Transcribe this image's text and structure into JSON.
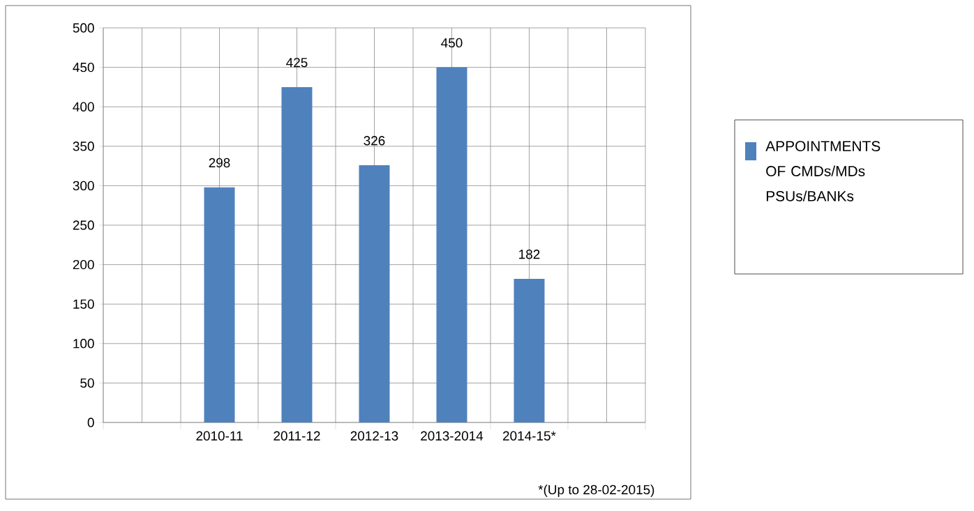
{
  "chart_data": {
    "type": "bar",
    "categories": [
      null,
      "2010-11",
      "2011-12",
      "2012-13",
      "2013-2014",
      "2014-15*",
      null
    ],
    "series": [
      {
        "name": "APPOINTMENTS OF CMDs/MDs PSUs/BANKs",
        "color": "#4f81bd",
        "values": [
          null,
          298,
          425,
          326,
          450,
          182,
          null
        ]
      }
    ],
    "ylim": [
      0,
      500
    ],
    "yticks": [
      0,
      50,
      100,
      150,
      200,
      250,
      300,
      350,
      400,
      450,
      500
    ],
    "grid": true,
    "legend": "right",
    "data_labels": true,
    "annotations": [
      "*(Up to 28-02-2015)"
    ]
  }
}
